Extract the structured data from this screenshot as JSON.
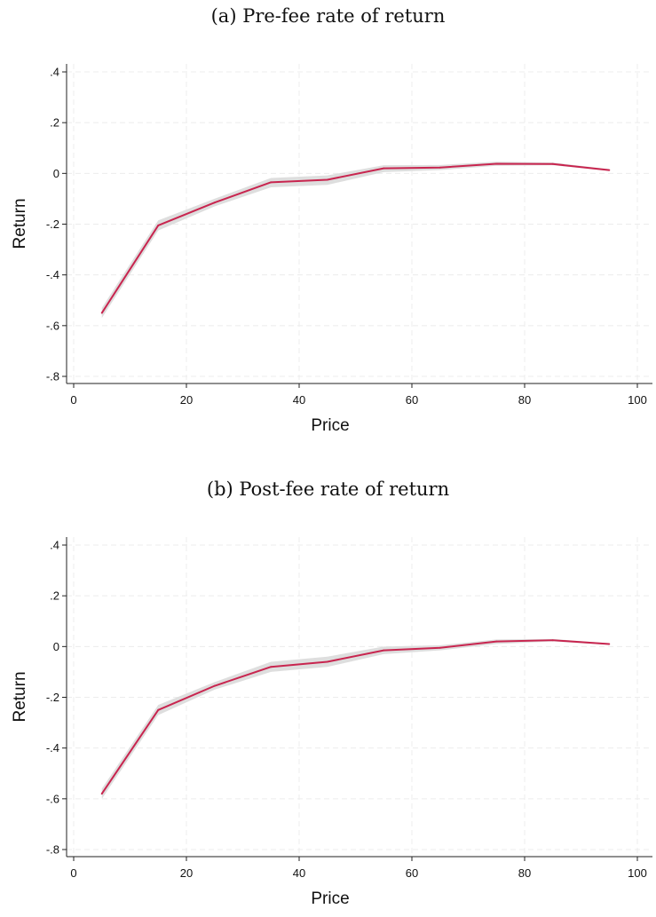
{
  "chart_data": [
    {
      "type": "line",
      "title": "(a) Pre-fee rate of return",
      "xlabel": "Price",
      "ylabel": "Return",
      "xlim": [
        0,
        100
      ],
      "ylim": [
        -0.8,
        0.4
      ],
      "xticks": [
        0,
        20,
        40,
        60,
        80,
        100
      ],
      "xtick_labels": [
        "0",
        "20",
        "40",
        "60",
        "80",
        "100"
      ],
      "yticks": [
        -0.8,
        -0.6,
        -0.4,
        -0.2,
        0,
        0.2,
        0.4
      ],
      "ytick_labels": [
        "-.8",
        "-.6",
        "-.4",
        "-.2",
        "0",
        ".2",
        ".4"
      ],
      "grid": true,
      "line_color": "#c8254f",
      "band_color": "#dedede",
      "x": [
        5,
        15,
        25,
        35,
        45,
        55,
        65,
        75,
        85,
        95
      ],
      "y": [
        -0.55,
        -0.205,
        -0.115,
        -0.035,
        -0.025,
        0.02,
        0.023,
        0.038,
        0.037,
        0.013
      ],
      "ci_lower": [
        -0.57,
        -0.225,
        -0.13,
        -0.055,
        -0.045,
        0.005,
        0.013,
        0.03,
        0.032,
        0.01
      ],
      "ci_upper": [
        -0.53,
        -0.185,
        -0.1,
        -0.018,
        -0.008,
        0.032,
        0.033,
        0.046,
        0.043,
        0.017
      ]
    },
    {
      "type": "line",
      "title": "(b) Post-fee rate of return",
      "xlabel": "Price",
      "ylabel": "Return",
      "xlim": [
        0,
        100
      ],
      "ylim": [
        -0.8,
        0.4
      ],
      "xticks": [
        0,
        20,
        40,
        60,
        80,
        100
      ],
      "xtick_labels": [
        "0",
        "20",
        "40",
        "60",
        "80",
        "100"
      ],
      "yticks": [
        -0.8,
        -0.6,
        -0.4,
        -0.2,
        0,
        0.2,
        0.4
      ],
      "ytick_labels": [
        "-.8",
        "-.6",
        "-.4",
        "-.2",
        "0",
        ".2",
        ".4"
      ],
      "grid": true,
      "line_color": "#c8254f",
      "band_color": "#dedede",
      "x": [
        5,
        15,
        25,
        35,
        45,
        55,
        65,
        75,
        85,
        95
      ],
      "y": [
        -0.58,
        -0.25,
        -0.155,
        -0.08,
        -0.06,
        -0.015,
        -0.005,
        0.02,
        0.025,
        0.01
      ],
      "ci_lower": [
        -0.6,
        -0.27,
        -0.17,
        -0.1,
        -0.08,
        -0.03,
        -0.015,
        0.01,
        0.02,
        0.007
      ],
      "ci_upper": [
        -0.56,
        -0.23,
        -0.14,
        -0.06,
        -0.04,
        0.0,
        0.005,
        0.028,
        0.03,
        0.013
      ]
    }
  ]
}
